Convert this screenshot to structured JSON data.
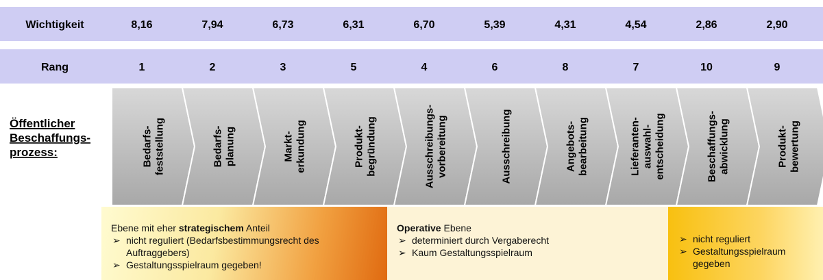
{
  "rows": [
    {
      "label": "Wichtigkeit",
      "values": [
        "8,16",
        "7,94",
        "6,73",
        "6,31",
        "6,70",
        "5,39",
        "4,31",
        "4,54",
        "2,86",
        "2,90"
      ]
    },
    {
      "label": "Rang",
      "values": [
        1,
        2,
        3,
        5,
        4,
        6,
        8,
        7,
        10,
        9
      ]
    }
  ],
  "process": {
    "label": [
      "Öffentlicher",
      "Beschaffungs-",
      "prozess:"
    ],
    "steps": [
      [
        "Bedarfs-",
        "feststellung"
      ],
      [
        "Bedarfs-",
        "planung"
      ],
      [
        "Markt-",
        "erkundung"
      ],
      [
        "Produkt-",
        "begründung"
      ],
      [
        "Ausschreibungs-",
        "vorbereitung"
      ],
      [
        "Ausschreibung"
      ],
      [
        "Angebots-",
        "bearbeitung"
      ],
      [
        "Lieferanten-",
        "auswahl-",
        "entscheidung"
      ],
      [
        "Beschaffungs-",
        "abwicklung"
      ],
      [
        "Produkt-",
        "bewertung"
      ]
    ]
  },
  "boxes": [
    {
      "heading": [
        "Ebene mit eher ",
        "strategischem",
        " Anteil"
      ],
      "bullets": [
        "nicht reguliert (Bedarfsbestimmungsrecht des Auftraggebers)",
        "Gestaltungsspielraum gegeben!"
      ]
    },
    {
      "heading": [
        "Operative",
        " Ebene"
      ],
      "bullets": [
        "determiniert durch Vergaberecht",
        "Kaum Gestaltungsspielraum"
      ]
    },
    {
      "bullets": [
        "nicht reguliert",
        "Gestaltungsspielraum gegeben"
      ]
    }
  ]
}
